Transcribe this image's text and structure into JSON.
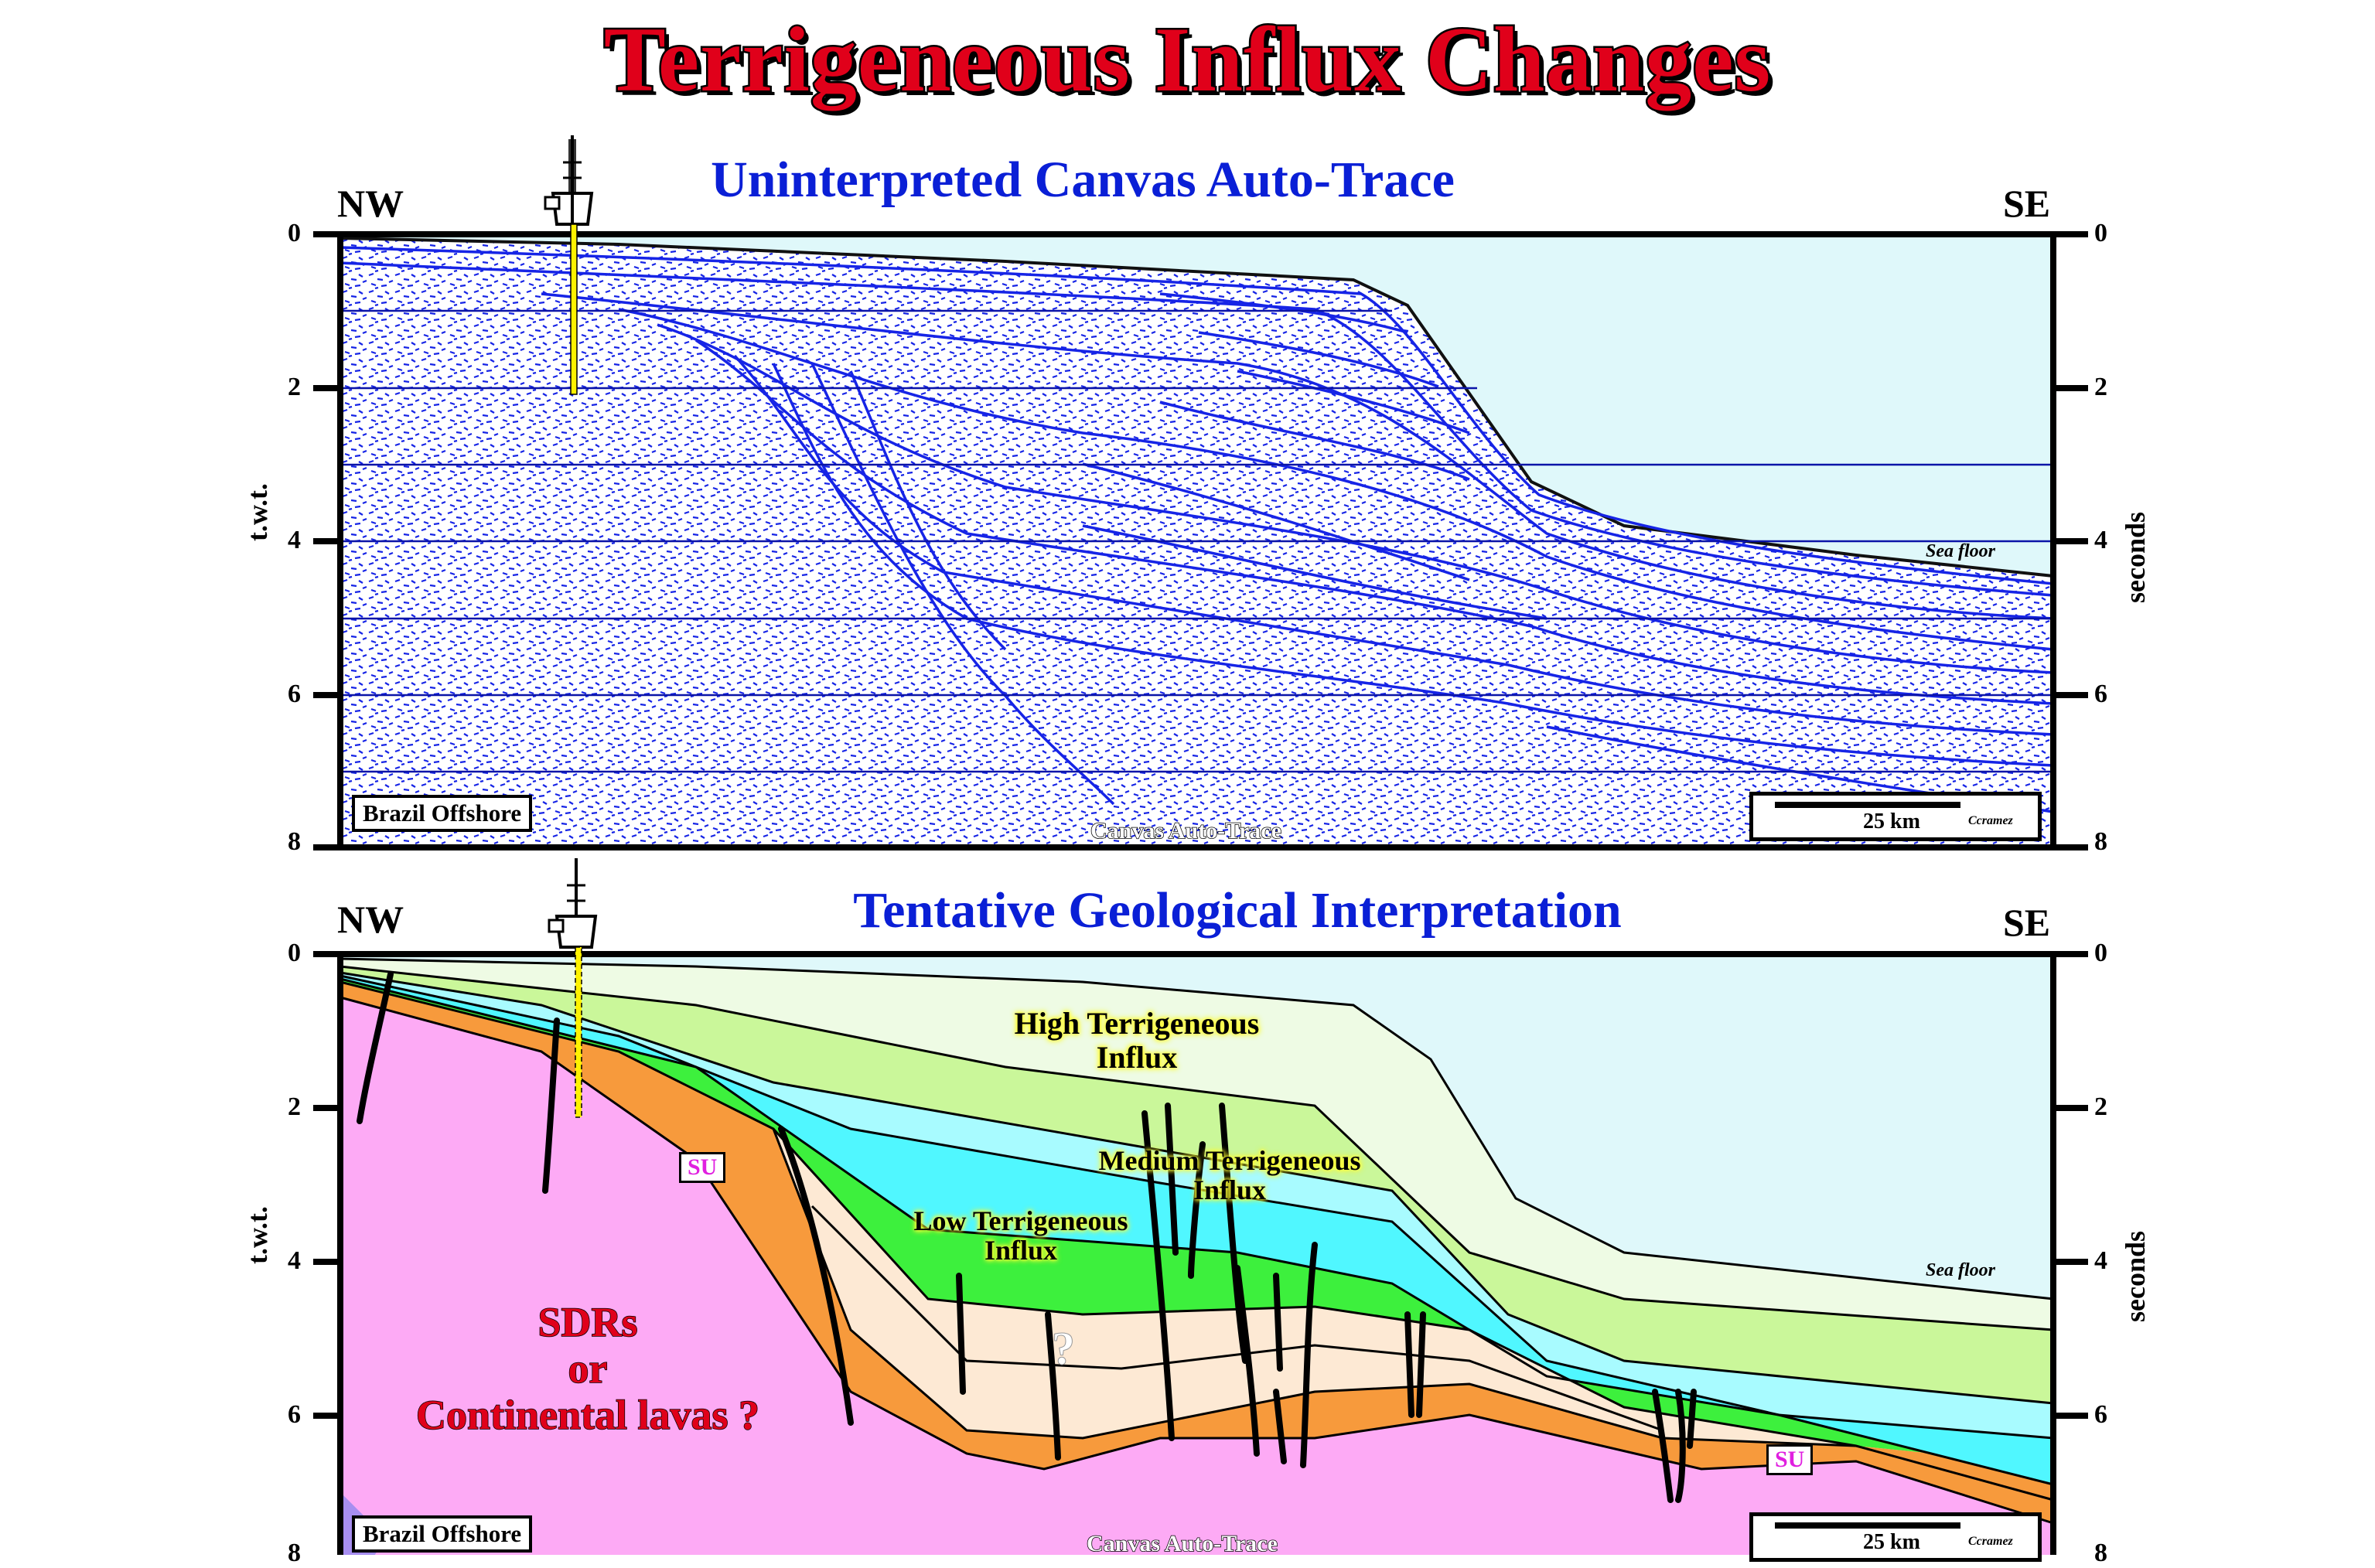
{
  "title": "Terrigeneous Influx Changes",
  "top_panel": {
    "title": "Uninterpreted Canvas Auto-Trace",
    "nw": "NW",
    "se": "SE",
    "left_ticks": [
      "0",
      "2",
      "4",
      "6",
      "8"
    ],
    "right_ticks": [
      "0",
      "2",
      "4",
      "6",
      "8"
    ],
    "left_axis_label": "t.w.t.",
    "right_axis_label": "seconds",
    "location_label": "Brazil Offshore",
    "scale_label": "25 km",
    "scale_credit": "Ccramez",
    "credit": "Canvas Auto-Trace",
    "seafloor_label": "Sea floor"
  },
  "bottom_panel": {
    "title": "Tentative Geological Interpretation",
    "nw": "NW",
    "se": "SE",
    "left_ticks": [
      "0",
      "2",
      "4",
      "6",
      "8"
    ],
    "right_ticks": [
      "0",
      "2",
      "4",
      "6",
      "8"
    ],
    "left_axis_label": "t.w.t.",
    "right_axis_label": "seconds",
    "location_label": "Brazil Offshore",
    "scale_label": "25 km",
    "scale_credit": "Ccramez",
    "credit": "Canvas Auto-Trace",
    "seafloor_label": "Sea floor",
    "units": {
      "high": "High Terrigeneous Influx",
      "high_line1": "High Terrigeneous",
      "high_line2": "Influx",
      "medium_line1": "Medium Terrigeneous",
      "medium_line2": "Influx",
      "low_line1": "Low Terrigeneous",
      "low_line2": "Influx",
      "su": "SU",
      "sdr_line1": "SDRs",
      "sdr_line2": "or",
      "sdr_line3": "Continental lavas ?",
      "question": "?"
    }
  },
  "colors": {
    "title_red": "#e0001a",
    "panel_title_blue": "#0a1fd6",
    "sea": "#dff8fa",
    "trace": "#1624e6",
    "basement_pink": "#fdaaf5",
    "orange": "#f79a3c",
    "cream": "#fde9d4",
    "green_bright": "#3df03d",
    "cyan": "#50f7ff",
    "cyan_light": "#a8fbff",
    "lime_light": "#caf79a",
    "pale": "#eefbe4"
  }
}
